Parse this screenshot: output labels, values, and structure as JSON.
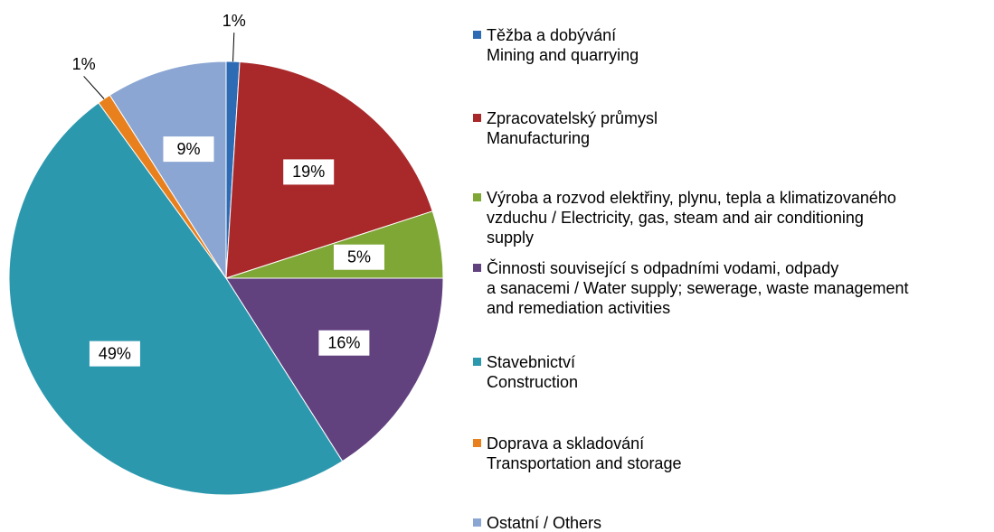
{
  "chart_data": {
    "type": "pie",
    "categories": [
      "Těžba a dobývání\nMining and quarrying",
      "Zpracovatelský průmysl\nManufacturing",
      "Výroba a rozvod elektřiny, plynu, tepla a klimatizovaného\nvzduchu / Electricity, gas, steam and air conditioning\nsupply",
      "Činnosti související s odpadními vodami, odpady\na sanacemi / Water supply; sewerage, waste management\nand remediation activities",
      "Stavebnictví\nConstruction",
      "Doprava a skladování\nTransportation and storage",
      "Ostatní / Others"
    ],
    "values": [
      1,
      19,
      5,
      16,
      49,
      1,
      9
    ],
    "value_labels": [
      "1%",
      "19%",
      "5%",
      "16%",
      "49%",
      "1%",
      "9%"
    ],
    "colors": [
      "#2e6bb5",
      "#a9292b",
      "#7fa736",
      "#62417f",
      "#2c98ae",
      "#e8801e",
      "#8ba6d3"
    ],
    "legend": "right"
  }
}
